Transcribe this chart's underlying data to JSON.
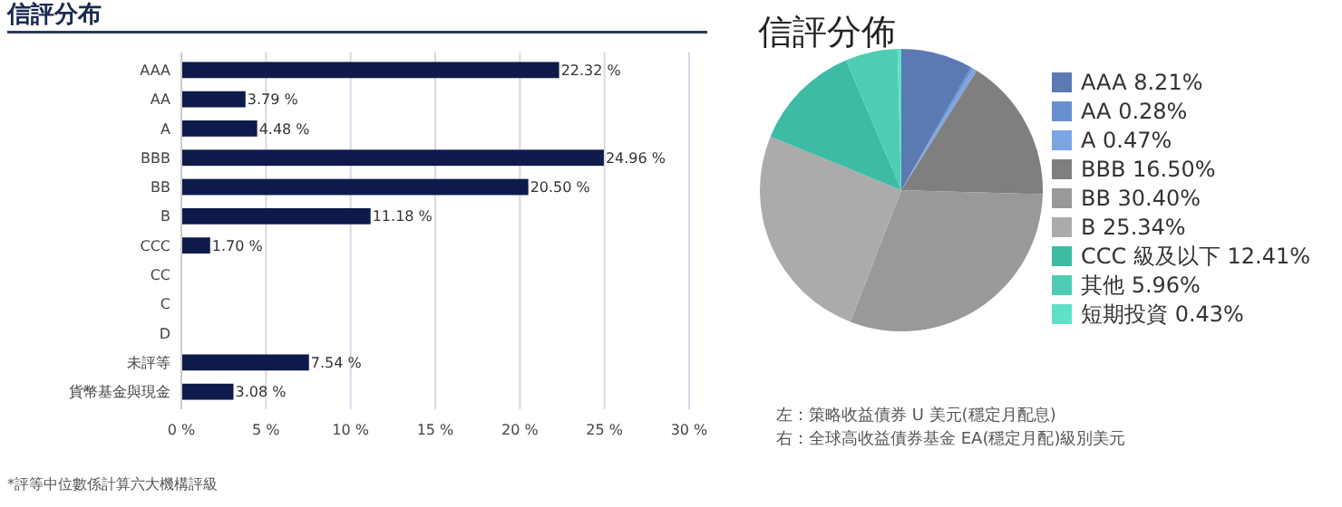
{
  "chart_data": [
    {
      "type": "bar",
      "orientation": "horizontal",
      "title": "信評分布",
      "categories": [
        "AAA",
        "AA",
        "A",
        "BBB",
        "BB",
        "B",
        "CCC",
        "CC",
        "C",
        "D",
        "未評等",
        "貨幣基金與現金"
      ],
      "values": [
        22.32,
        3.79,
        4.48,
        24.96,
        20.5,
        11.18,
        1.7,
        null,
        null,
        null,
        7.54,
        3.08
      ],
      "value_labels": [
        "22.32 %",
        "3.79 %",
        "4.48 %",
        "24.96 %",
        "20.50 %",
        "11.18 %",
        "1.70 %",
        null,
        null,
        null,
        "7.54 %",
        "3.08 %"
      ],
      "color": "#0d1a4a",
      "xlim": [
        0,
        30
      ],
      "xticks": [
        {
          "value": 0,
          "label": "0 %"
        },
        {
          "value": 5,
          "label": "5 %"
        },
        {
          "value": 10,
          "label": "10 %"
        },
        {
          "value": 15,
          "label": "15 %"
        },
        {
          "value": 20,
          "label": "20 %"
        },
        {
          "value": 25,
          "label": "25 %"
        },
        {
          "value": 30,
          "label": "30 %"
        }
      ],
      "grid": "x",
      "annotations": [
        "*評等中位數係計算六大機構評級"
      ]
    },
    {
      "type": "pie",
      "title": "信評分佈",
      "categories": [
        "AAA",
        "AA",
        "A",
        "BBB",
        "BB",
        "B",
        "CCC 級及以下",
        "其他",
        "短期投資"
      ],
      "values": [
        8.21,
        0.28,
        0.47,
        16.5,
        30.4,
        25.34,
        12.41,
        5.96,
        0.43
      ],
      "value_labels": [
        "8.21%",
        "0.28%",
        "0.47%",
        "16.50%",
        "30.40%",
        "25.34%",
        "12.41%",
        "5.96%",
        "0.43%"
      ],
      "colors": [
        "#5b79b3",
        "#6a8fd0",
        "#7ca6e3",
        "#7f7f7f",
        "#999999",
        "#ababab",
        "#3dbba5",
        "#4fcdb4",
        "#5fe0c8"
      ],
      "legend": "right",
      "annotations": [
        "左：策略收益債券 U 美元(穩定月配息)",
        "右：全球高收益債券基金 EA(穩定月配)級別美元"
      ]
    }
  ]
}
